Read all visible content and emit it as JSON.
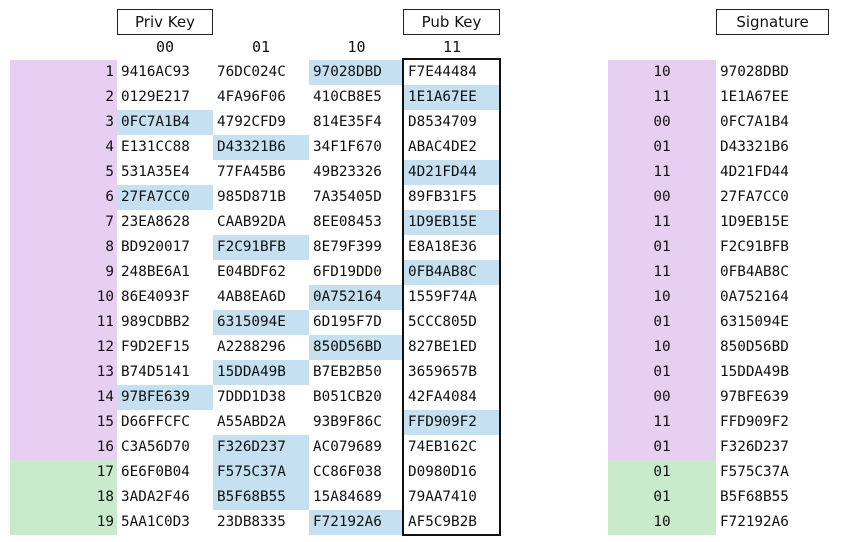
{
  "headers": {
    "priv_key": "Priv Key",
    "pub_key": "Pub Key",
    "signature": "Signature"
  },
  "columns": [
    "00",
    "01",
    "10",
    "11"
  ],
  "colors": {
    "purple": "#e6cff0",
    "green": "#c9ebcc",
    "blue": "#c5e0f0"
  },
  "rows": [
    {
      "num": "1",
      "group": "purple",
      "cells": [
        "9416AC93",
        "76DC024C",
        "97028DBD",
        "F7E44484"
      ],
      "hl": 2,
      "sig_bits": "10",
      "sig_val": "97028DBD"
    },
    {
      "num": "2",
      "group": "purple",
      "cells": [
        "0129E217",
        "4FA96F06",
        "410CB8E5",
        "1E1A67EE"
      ],
      "hl": 3,
      "sig_bits": "11",
      "sig_val": "1E1A67EE"
    },
    {
      "num": "3",
      "group": "purple",
      "cells": [
        "0FC7A1B4",
        "4792CFD9",
        "814E35F4",
        "D8534709"
      ],
      "hl": 0,
      "sig_bits": "00",
      "sig_val": "0FC7A1B4"
    },
    {
      "num": "4",
      "group": "purple",
      "cells": [
        "E131CC88",
        "D43321B6",
        "34F1F670",
        "ABAC4DE2"
      ],
      "hl": 1,
      "sig_bits": "01",
      "sig_val": "D43321B6"
    },
    {
      "num": "5",
      "group": "purple",
      "cells": [
        "531A35E4",
        "77FA45B6",
        "49B23326",
        "4D21FD44"
      ],
      "hl": 3,
      "sig_bits": "11",
      "sig_val": "4D21FD44"
    },
    {
      "num": "6",
      "group": "purple",
      "cells": [
        "27FA7CC0",
        "985D871B",
        "7A35405D",
        "89FB31F5"
      ],
      "hl": 0,
      "sig_bits": "00",
      "sig_val": "27FA7CC0"
    },
    {
      "num": "7",
      "group": "purple",
      "cells": [
        "23EA8628",
        "CAAB92DA",
        "8EE08453",
        "1D9EB15E"
      ],
      "hl": 3,
      "sig_bits": "11",
      "sig_val": "1D9EB15E"
    },
    {
      "num": "8",
      "group": "purple",
      "cells": [
        "BD920017",
        "F2C91BFB",
        "8E79F399",
        "E8A18E36"
      ],
      "hl": 1,
      "sig_bits": "01",
      "sig_val": "F2C91BFB"
    },
    {
      "num": "9",
      "group": "purple",
      "cells": [
        "248BE6A1",
        "E04BDF62",
        "6FD19DD0",
        "0FB4AB8C"
      ],
      "hl": 3,
      "sig_bits": "11",
      "sig_val": "0FB4AB8C"
    },
    {
      "num": "10",
      "group": "purple",
      "cells": [
        "86E4093F",
        "4AB8EA6D",
        "0A752164",
        "1559F74A"
      ],
      "hl": 2,
      "sig_bits": "10",
      "sig_val": "0A752164"
    },
    {
      "num": "11",
      "group": "purple",
      "cells": [
        "989CDBB2",
        "6315094E",
        "6D195F7D",
        "5CCC805D"
      ],
      "hl": 1,
      "sig_bits": "01",
      "sig_val": "6315094E"
    },
    {
      "num": "12",
      "group": "purple",
      "cells": [
        "F9D2EF15",
        "A2288296",
        "850D56BD",
        "827BE1ED"
      ],
      "hl": 2,
      "sig_bits": "10",
      "sig_val": "850D56BD"
    },
    {
      "num": "13",
      "group": "purple",
      "cells": [
        "B74D5141",
        "15DDA49B",
        "B7EB2B50",
        "3659657B"
      ],
      "hl": 1,
      "sig_bits": "01",
      "sig_val": "15DDA49B"
    },
    {
      "num": "14",
      "group": "purple",
      "cells": [
        "97BFE639",
        "7DDD1D38",
        "B051CB20",
        "42FA4084"
      ],
      "hl": 0,
      "sig_bits": "00",
      "sig_val": "97BFE639"
    },
    {
      "num": "15",
      "group": "purple",
      "cells": [
        "D66FFCFC",
        "A55ABD2A",
        "93B9F86C",
        "FFD909F2"
      ],
      "hl": 3,
      "sig_bits": "11",
      "sig_val": "FFD909F2"
    },
    {
      "num": "16",
      "group": "purple",
      "cells": [
        "C3A56D70",
        "F326D237",
        "AC079689",
        "74EB162C"
      ],
      "hl": 1,
      "sig_bits": "01",
      "sig_val": "F326D237"
    },
    {
      "num": "17",
      "group": "green",
      "cells": [
        "6E6F0B04",
        "F575C37A",
        "CC86F038",
        "D0980D16"
      ],
      "hl": 1,
      "sig_bits": "01",
      "sig_val": "F575C37A"
    },
    {
      "num": "18",
      "group": "green",
      "cells": [
        "3ADA2F46",
        "B5F68B55",
        "15A84689",
        "79AA7410"
      ],
      "hl": 1,
      "sig_bits": "01",
      "sig_val": "B5F68B55"
    },
    {
      "num": "19",
      "group": "green",
      "cells": [
        "5AA1C0D3",
        "23DB8335",
        "F72192A6",
        "AF5C9B2B"
      ],
      "hl": 2,
      "sig_bits": "10",
      "sig_val": "F72192A6"
    }
  ]
}
